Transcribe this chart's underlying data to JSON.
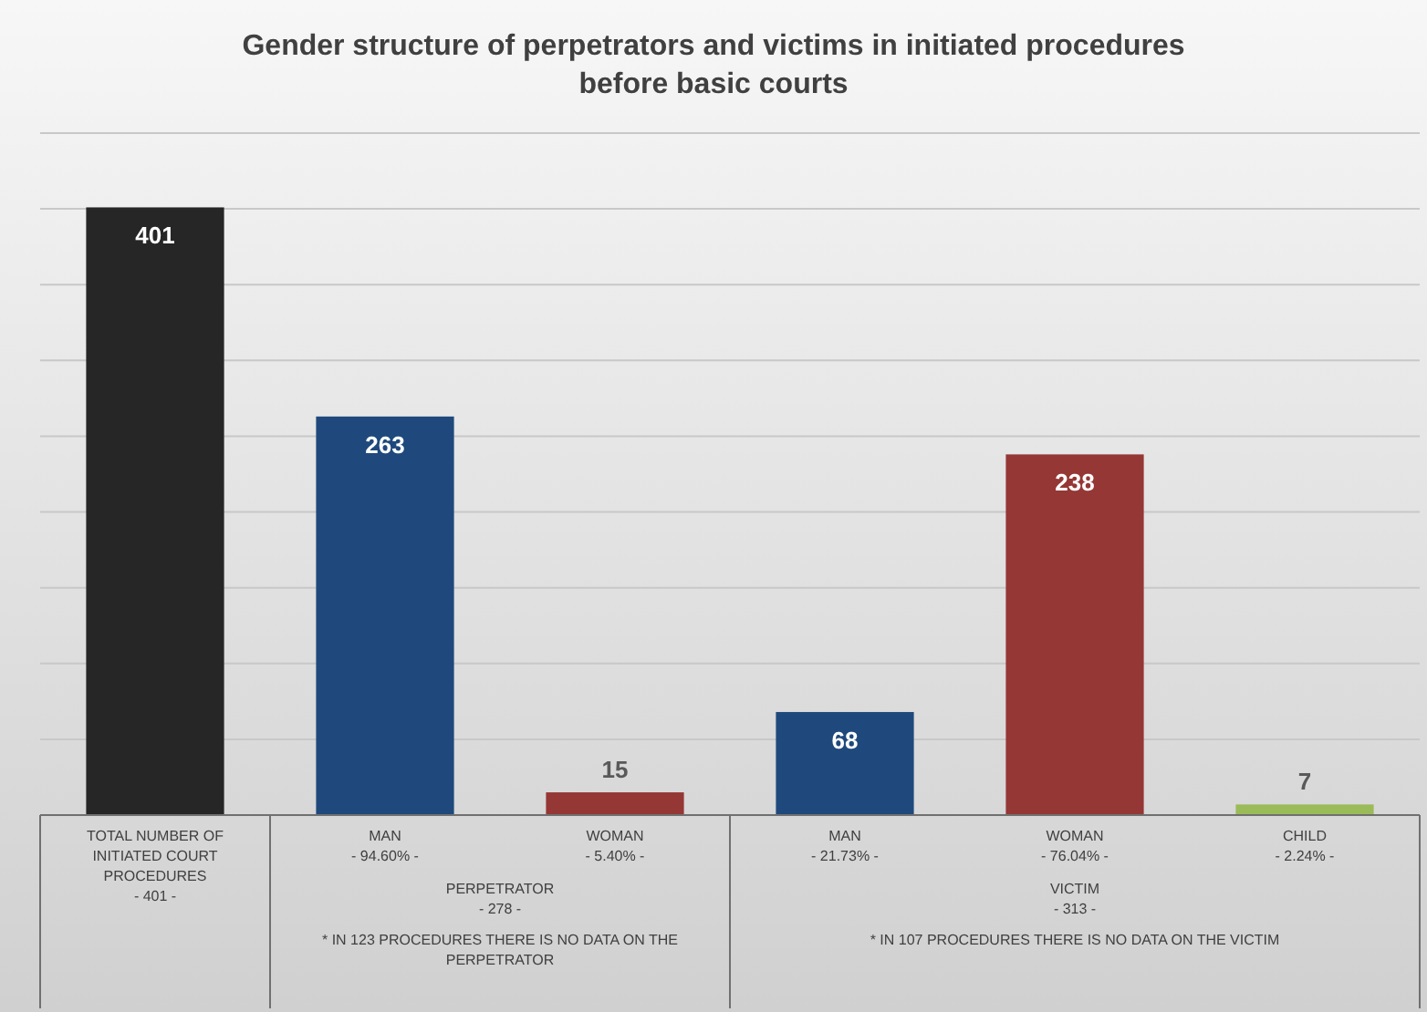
{
  "chart_data": {
    "type": "bar",
    "title": "Gender structure of perpetrators and victims in initiated procedures\nbefore basic courts",
    "categories": [
      "TOTAL NUMBER OF\nINITIATED COURT\nPROCEDURES\n- 401 -",
      "MAN\n- 94.60% -",
      "WOMAN\n- 5.40% -",
      "MAN\n- 21.73% -",
      "WOMAN\n- 76.04% -",
      "CHILD\n- 2.24% -"
    ],
    "values": [
      401,
      263,
      15,
      68,
      238,
      7
    ],
    "colors": [
      "#262626",
      "#1f497d",
      "#953735",
      "#1f497d",
      "#953735",
      "#9bbb59"
    ],
    "ylim": [
      0,
      450
    ],
    "yticks": [
      {
        "value": 0,
        "label": null
      },
      {
        "value": 50,
        "label": null
      },
      {
        "value": 100,
        "label": null
      },
      {
        "value": 150,
        "label": null
      },
      {
        "value": 200,
        "label": null
      },
      {
        "value": 250,
        "label": null
      },
      {
        "value": 300,
        "label": null
      },
      {
        "value": 350,
        "label": null
      },
      {
        "value": 400,
        "label": null
      },
      {
        "value": 450,
        "label": null
      }
    ],
    "tick_labels": "x",
    "grid": "y",
    "data_labels": true,
    "annotations": [
      "PERPETRATOR\n- 278 -",
      "* IN 123 PROCEDURES THERE IS NO DATA ON THE\nPERPETRATOR",
      "VICTIM\n- 313 -",
      "* IN 107 PROCEDURES THERE IS NO DATA ON THE VICTIM"
    ]
  }
}
